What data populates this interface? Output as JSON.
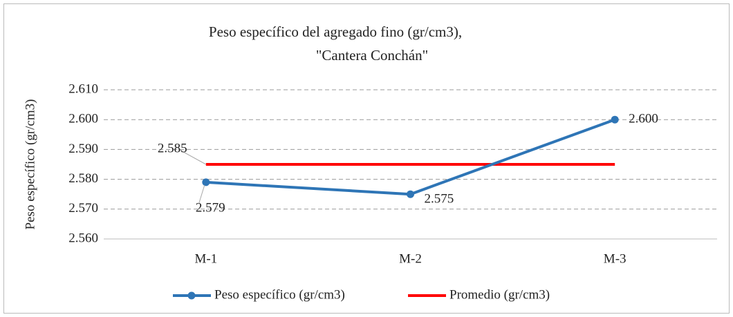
{
  "chart_data": {
    "type": "line",
    "title": "Peso específico del agregado fino (gr/cm3),",
    "subtitle": "\"Cantera Conchán\"",
    "y_label": "Peso específico (gr/cm3)",
    "categories": [
      "M-1",
      "M-2",
      "M-3"
    ],
    "series": [
      {
        "name": "Peso específico (gr/cm3)",
        "color": "#2e75b6",
        "marker": true,
        "values": [
          2.579,
          2.575,
          2.6
        ],
        "value_labels": [
          "2.579",
          "2.575",
          "2.600"
        ]
      },
      {
        "name": "Promedio (gr/cm3)",
        "color": "#ff0000",
        "marker": false,
        "values": [
          2.585,
          2.585,
          2.585
        ],
        "value_labels": [
          "2.585",
          null,
          null
        ]
      }
    ],
    "ylim": [
      2.56,
      2.61
    ],
    "yticks": [
      {
        "value": 2.56,
        "label": "2.560"
      },
      {
        "value": 2.57,
        "label": "2.570"
      },
      {
        "value": 2.58,
        "label": "2.580"
      },
      {
        "value": 2.59,
        "label": "2.590"
      },
      {
        "value": 2.6,
        "label": "2.600"
      },
      {
        "value": 2.61,
        "label": "2.610"
      }
    ],
    "grid": true,
    "legend": "bottom"
  }
}
